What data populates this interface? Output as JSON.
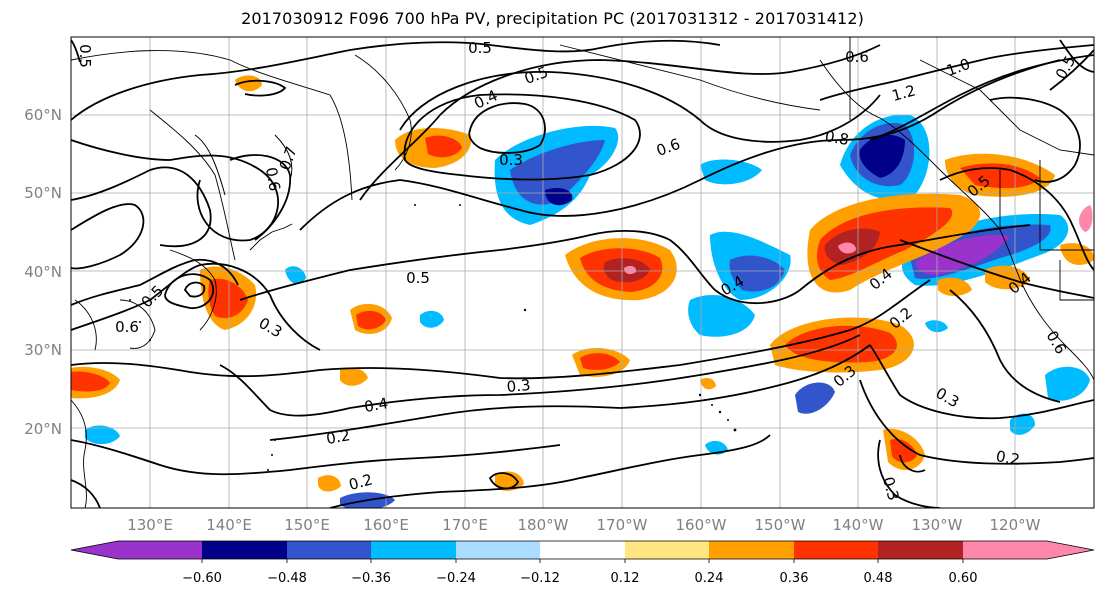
{
  "title": "2017030912 F096 700 hPa PV, precipitation PC (2017031312 - 2017031412)",
  "map": {
    "lat_labels": [
      "60°N",
      "50°N",
      "40°N",
      "30°N",
      "20°N"
    ],
    "lon_labels": [
      "130°E",
      "140°E",
      "150°E",
      "160°E",
      "170°E",
      "180°W",
      "170°W",
      "160°W",
      "150°W",
      "140°W",
      "130°W",
      "120°W"
    ],
    "contour_labels": [
      "0.5",
      "0.5",
      "0.4",
      "0.3",
      "0.6",
      "0.8",
      "0.6",
      "1.0",
      "1.2",
      "0.5",
      "0.7",
      "0.6",
      "0.5",
      "0.6",
      "0.3",
      "0.5",
      "0.4",
      "0.4",
      "0.2",
      "0.4",
      "0.3",
      "0.3",
      "0.2",
      "0.2",
      "0.3",
      "0.2",
      "0.4",
      "0.6",
      "0.5",
      "0.5",
      "0.3"
    ]
  },
  "colorbar": {
    "tick_labels": [
      "−0.60",
      "−0.48",
      "−0.36",
      "−0.24",
      "−0.12",
      "0.12",
      "0.24",
      "0.36",
      "0.48",
      "0.60"
    ],
    "colors": [
      "#9933cc",
      "#000088",
      "#3355cc",
      "#00bbff",
      "#aaddff",
      "#ffffff",
      "#ffe680",
      "#ffa000",
      "#ff3300",
      "#b22222",
      "#ff88aa"
    ]
  }
}
